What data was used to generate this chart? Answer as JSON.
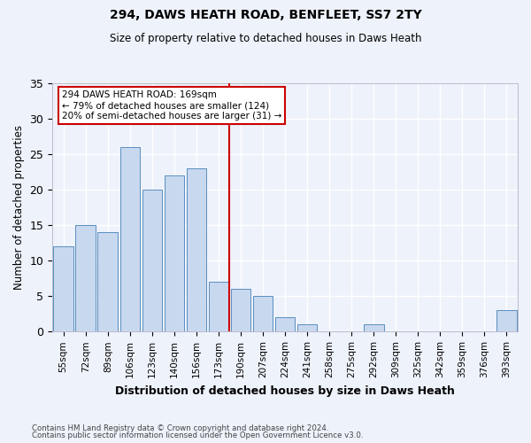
{
  "title1": "294, DAWS HEATH ROAD, BENFLEET, SS7 2TY",
  "title2": "Size of property relative to detached houses in Daws Heath",
  "xlabel": "Distribution of detached houses by size in Daws Heath",
  "ylabel": "Number of detached properties",
  "categories": [
    "55sqm",
    "72sqm",
    "89sqm",
    "106sqm",
    "123sqm",
    "140sqm",
    "156sqm",
    "173sqm",
    "190sqm",
    "207sqm",
    "224sqm",
    "241sqm",
    "258sqm",
    "275sqm",
    "292sqm",
    "309sqm",
    "325sqm",
    "342sqm",
    "359sqm",
    "376sqm",
    "393sqm"
  ],
  "values": [
    12,
    15,
    14,
    26,
    20,
    22,
    23,
    7,
    6,
    5,
    2,
    1,
    0,
    0,
    1,
    0,
    0,
    0,
    0,
    0,
    3
  ],
  "bar_color": "#c8d8ef",
  "bar_edge_color": "#5a8fc0",
  "vline_x": 7.5,
  "vline_color": "#cc0000",
  "annotation_text": "294 DAWS HEATH ROAD: 169sqm\n← 79% of detached houses are smaller (124)\n20% of semi-detached houses are larger (31) →",
  "annotation_box_color": "#ffffff",
  "annotation_box_edge_color": "#cc0000",
  "ylim": [
    0,
    35
  ],
  "yticks": [
    0,
    5,
    10,
    15,
    20,
    25,
    30,
    35
  ],
  "footer1": "Contains HM Land Registry data © Crown copyright and database right 2024.",
  "footer2": "Contains public sector information licensed under the Open Government Licence v3.0.",
  "background_color": "#eef2fb",
  "grid_color": "#ffffff"
}
